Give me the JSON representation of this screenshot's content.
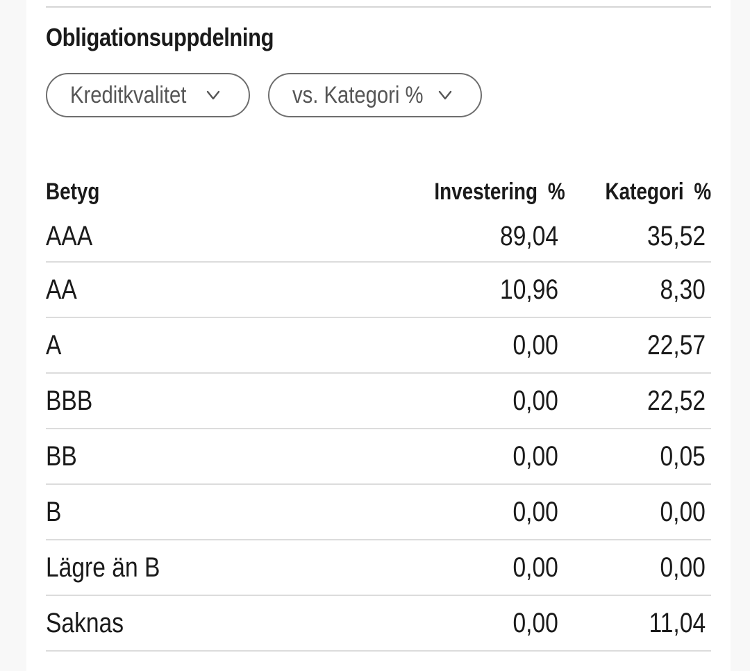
{
  "section": {
    "title": "Obligationsuppdelning"
  },
  "filters": {
    "breakdown": {
      "label": "Kreditkvalitet",
      "icon": "chevron-down-icon"
    },
    "comparison": {
      "label": "vs. Kategori %",
      "icon": "chevron-down-icon"
    }
  },
  "table": {
    "headers": {
      "rating": "Betyg",
      "investment": "Investering",
      "investment_unit": "%",
      "category": "Kategori",
      "category_unit": "%"
    },
    "rows": [
      {
        "rating": "AAA",
        "investment": "89,04",
        "category": "35,52"
      },
      {
        "rating": "AA",
        "investment": "10,96",
        "category": "8,30"
      },
      {
        "rating": "A",
        "investment": "0,00",
        "category": "22,57"
      },
      {
        "rating": "BBB",
        "investment": "0,00",
        "category": "22,52"
      },
      {
        "rating": "BB",
        "investment": "0,00",
        "category": "0,05"
      },
      {
        "rating": "B",
        "investment": "0,00",
        "category": "0,00"
      },
      {
        "rating": "Lägre än B",
        "investment": "0,00",
        "category": "0,00"
      },
      {
        "rating": "Saknas",
        "investment": "0,00",
        "category": "11,04"
      }
    ]
  },
  "colors": {
    "text": "#1a1a1a",
    "muted_text": "#555555",
    "border": "#6e6e6e",
    "divider": "#dcdcdc",
    "background": "#ffffff"
  }
}
